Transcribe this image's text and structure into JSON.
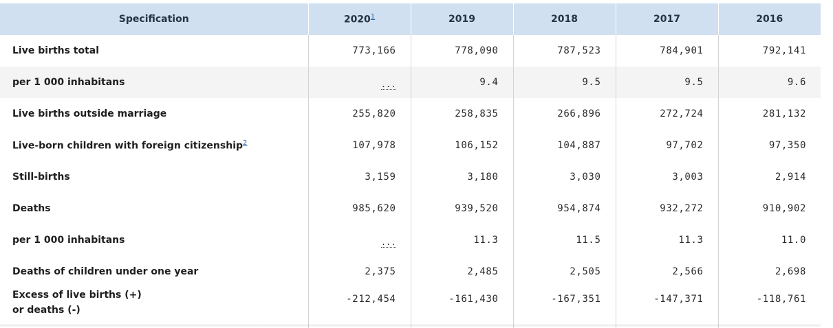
{
  "table": {
    "header": {
      "spec": "Specification",
      "years": [
        {
          "label": "2020",
          "footnote": "1"
        },
        {
          "label": "2019",
          "footnote": ""
        },
        {
          "label": "2018",
          "footnote": ""
        },
        {
          "label": "2017",
          "footnote": ""
        },
        {
          "label": "2016",
          "footnote": ""
        }
      ]
    },
    "rows": [
      {
        "label": "Live births total",
        "footnote": "",
        "values": [
          "773,166",
          "778,090",
          "787,523",
          "784,901",
          "792,141"
        ]
      },
      {
        "label": "per 1 000 inhabitans",
        "footnote": "",
        "values": [
          "...",
          "9.4",
          "9.5",
          "9.5",
          "9.6"
        ]
      },
      {
        "label": "Live births outside marriage",
        "footnote": "",
        "values": [
          "255,820",
          "258,835",
          "266,896",
          "272,724",
          "281,132"
        ]
      },
      {
        "label": "Live-born children with foreign citizenship",
        "footnote": "2",
        "values": [
          "107,978",
          "106,152",
          "104,887",
          "97,702",
          "97,350"
        ]
      },
      {
        "label": "Still-births",
        "footnote": "",
        "values": [
          "3,159",
          "3,180",
          "3,030",
          "3,003",
          "2,914"
        ]
      },
      {
        "label": "Deaths",
        "footnote": "",
        "values": [
          "985,620",
          "939,520",
          "954,874",
          "932,272",
          "910,902"
        ]
      },
      {
        "label": "per 1 000 inhabitans",
        "footnote": "",
        "values": [
          "...",
          "11.3",
          "11.5",
          "11.3",
          "11.0"
        ]
      },
      {
        "label": "Deaths of children under one year",
        "footnote": "",
        "values": [
          "2,375",
          "2,485",
          "2,505",
          "2,566",
          "2,698"
        ]
      },
      {
        "label_line1": "Excess of live births (+)",
        "label_line2": "or deaths (-)",
        "footnote": "",
        "values": [
          "-212,454",
          "-161,430",
          "-167,351",
          "-147,371",
          "-118,761"
        ]
      }
    ]
  }
}
